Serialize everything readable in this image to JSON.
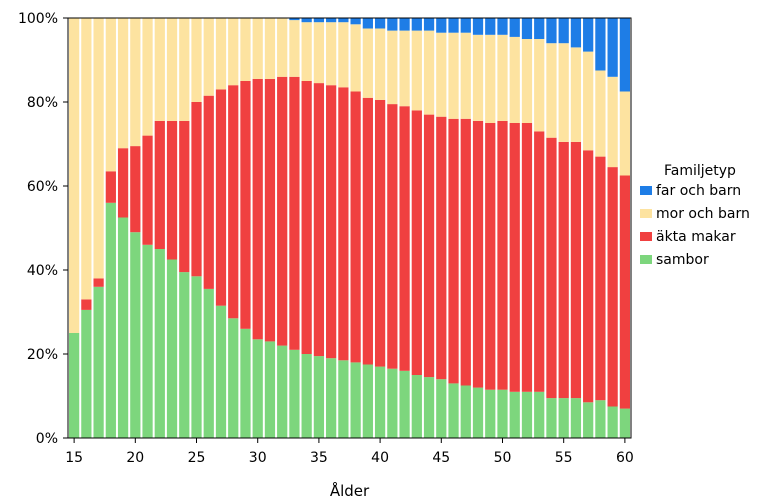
{
  "chart_data": {
    "type": "bar",
    "stacked": "percent",
    "xlabel": "Ålder",
    "ylabel": "",
    "ylim": [
      0,
      100
    ],
    "yticks": [
      "0%",
      "20%",
      "40%",
      "60%",
      "80%",
      "100%"
    ],
    "xticks": [
      15,
      20,
      25,
      30,
      35,
      40,
      45,
      50,
      55,
      60
    ],
    "grid": false,
    "legend": {
      "title": "Familjetyp",
      "placement": "right",
      "entries": [
        "far och barn",
        "mor och barn",
        "äkta makar",
        "sambor"
      ]
    },
    "categories": [
      15,
      16,
      17,
      18,
      19,
      20,
      21,
      22,
      23,
      24,
      25,
      26,
      27,
      28,
      29,
      30,
      31,
      32,
      33,
      34,
      35,
      36,
      37,
      38,
      39,
      40,
      41,
      42,
      43,
      44,
      45,
      46,
      47,
      48,
      49,
      50,
      51,
      52,
      53,
      54,
      55,
      56,
      57,
      58,
      59,
      60
    ],
    "series": [
      {
        "name": "sambor",
        "color": "#7dd67d",
        "values": [
          25,
          30.5,
          36,
          56,
          52.5,
          49,
          46,
          45,
          42.5,
          39.5,
          38.5,
          35.5,
          31.5,
          28.5,
          26,
          23.5,
          23,
          22,
          21,
          20,
          19.5,
          19,
          18.5,
          18,
          17.5,
          17,
          16.5,
          16,
          15,
          14.5,
          14,
          13,
          12.5,
          12,
          11.5,
          11.5,
          11,
          11,
          11,
          9.5,
          9.5,
          9.5,
          8.5,
          9,
          7.5,
          7
        ]
      },
      {
        "name": "äkta makar",
        "color": "#f04040",
        "values": [
          0,
          2.5,
          2,
          7.5,
          16.5,
          20.5,
          26,
          30.5,
          33,
          36,
          41.5,
          46,
          51.5,
          55.5,
          59,
          62,
          62.5,
          64,
          65,
          65,
          65,
          65,
          65,
          64.5,
          63.5,
          63.5,
          63,
          63,
          63,
          62.5,
          62.5,
          63,
          63.5,
          63.5,
          63.5,
          64,
          64,
          64,
          62,
          62,
          61,
          61,
          60,
          58,
          57,
          55.5
        ]
      },
      {
        "name": "mor och barn",
        "color": "#fde3a0",
        "values": [
          75,
          67,
          62,
          36.5,
          31,
          30.5,
          28,
          24.5,
          24.5,
          24.5,
          20,
          18.5,
          17,
          16,
          15,
          14.5,
          14.5,
          14,
          13.5,
          14,
          14.5,
          15,
          15.5,
          16,
          16.5,
          17,
          17.5,
          18,
          19,
          20,
          20,
          20.5,
          20.5,
          20.5,
          21,
          20.5,
          20.5,
          20,
          22,
          22.5,
          23.5,
          22.5,
          23.5,
          20.5,
          21.5,
          20
        ]
      },
      {
        "name": "far och barn",
        "color": "#1e7de6",
        "values": [
          0,
          0,
          0,
          0,
          0,
          0,
          0,
          0,
          0,
          0,
          0,
          0,
          0,
          0,
          0,
          0,
          0,
          0,
          0.5,
          1,
          1,
          1,
          1,
          1.5,
          2.5,
          2.5,
          3,
          3,
          3,
          3,
          3.5,
          3.5,
          3.5,
          4,
          4,
          4,
          4.5,
          5,
          5,
          6,
          6,
          7,
          8,
          12.5,
          14,
          17.5
        ]
      }
    ]
  }
}
